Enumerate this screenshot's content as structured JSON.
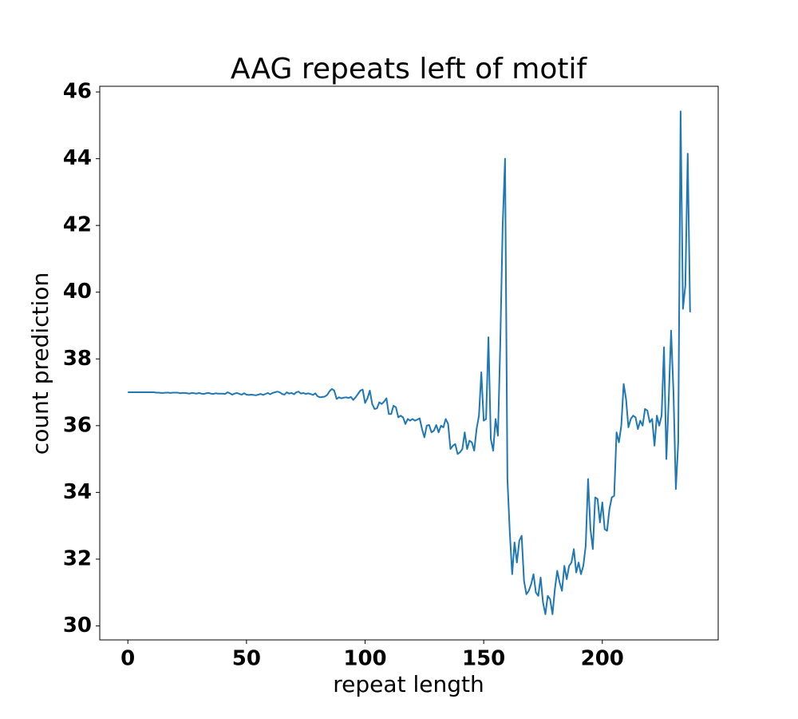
{
  "chart_data": {
    "type": "line",
    "title": "AAG repeats left of motif",
    "xlabel": "repeat length",
    "ylabel": "count prediction",
    "xlim": [
      -11.85,
      248.85
    ],
    "ylim": [
      29.58,
      46.17
    ],
    "xticks": [
      0,
      50,
      100,
      150,
      200
    ],
    "yticks": [
      30,
      32,
      34,
      36,
      38,
      40,
      42,
      44,
      46
    ],
    "x": [
      0,
      1,
      2,
      3,
      4,
      5,
      6,
      7,
      8,
      9,
      10,
      11,
      12,
      13,
      14,
      15,
      16,
      17,
      18,
      19,
      20,
      21,
      22,
      23,
      24,
      25,
      26,
      27,
      28,
      29,
      30,
      31,
      32,
      33,
      34,
      35,
      36,
      37,
      38,
      39,
      40,
      41,
      42,
      43,
      44,
      45,
      46,
      47,
      48,
      49,
      50,
      51,
      52,
      53,
      54,
      55,
      56,
      57,
      58,
      59,
      60,
      61,
      62,
      63,
      64,
      65,
      66,
      67,
      68,
      69,
      70,
      71,
      72,
      73,
      74,
      75,
      76,
      77,
      78,
      79,
      80,
      81,
      82,
      83,
      84,
      85,
      86,
      87,
      88,
      89,
      90,
      91,
      92,
      93,
      94,
      95,
      96,
      97,
      98,
      99,
      100,
      101,
      102,
      103,
      104,
      105,
      106,
      107,
      108,
      109,
      110,
      111,
      112,
      113,
      114,
      115,
      116,
      117,
      118,
      119,
      120,
      121,
      122,
      123,
      124,
      125,
      126,
      127,
      128,
      129,
      130,
      131,
      132,
      133,
      134,
      135,
      136,
      137,
      138,
      139,
      140,
      141,
      142,
      143,
      144,
      145,
      146,
      147,
      148,
      149,
      150,
      151,
      152,
      153,
      154,
      155,
      156,
      157,
      158,
      159,
      160,
      161,
      162,
      163,
      164,
      165,
      166,
      167,
      168,
      169,
      170,
      171,
      172,
      173,
      174,
      175,
      176,
      177,
      178,
      179,
      180,
      181,
      182,
      183,
      184,
      185,
      186,
      187,
      188,
      189,
      190,
      191,
      192,
      193,
      194,
      195,
      196,
      197,
      198,
      199,
      200,
      201,
      202,
      203,
      204,
      205,
      206,
      207,
      208,
      209,
      210,
      211,
      212,
      213,
      214,
      215,
      216,
      217,
      218,
      219,
      220,
      221,
      222,
      223,
      224,
      225,
      226,
      227,
      228,
      229,
      230,
      231,
      232,
      233,
      234,
      235,
      236,
      237
    ],
    "series": [
      {
        "color": "#1f77b4",
        "values": [
          37.0,
          37.0,
          37.0,
          37.0,
          37.0,
          37.0,
          37.0,
          37.0,
          37.0,
          37.0,
          37.0,
          37.0,
          36.99,
          36.99,
          36.98,
          36.98,
          36.99,
          36.99,
          36.98,
          36.99,
          36.99,
          36.99,
          36.97,
          36.98,
          36.98,
          36.97,
          36.96,
          36.98,
          36.97,
          36.96,
          36.98,
          36.96,
          36.95,
          36.97,
          36.98,
          36.96,
          36.95,
          36.97,
          36.96,
          36.96,
          36.96,
          36.95,
          37.0,
          36.97,
          36.93,
          36.96,
          36.98,
          36.95,
          36.93,
          36.97,
          36.93,
          36.92,
          36.93,
          36.92,
          36.91,
          36.93,
          36.95,
          36.92,
          36.95,
          36.98,
          36.94,
          36.98,
          37.0,
          37.02,
          37.0,
          36.95,
          36.93,
          37.0,
          36.96,
          36.98,
          36.94,
          37.0,
          37.02,
          36.96,
          36.98,
          36.95,
          36.97,
          36.95,
          36.92,
          36.97,
          36.88,
          36.85,
          36.86,
          36.87,
          36.92,
          37.03,
          37.1,
          37.05,
          36.8,
          36.85,
          36.82,
          36.84,
          36.85,
          36.83,
          36.86,
          36.77,
          36.85,
          36.95,
          37.05,
          37.08,
          36.68,
          36.82,
          37.05,
          36.65,
          36.5,
          36.52,
          36.7,
          36.65,
          36.72,
          36.82,
          36.35,
          36.35,
          36.6,
          36.55,
          36.25,
          36.3,
          36.25,
          36.05,
          36.2,
          36.15,
          36.2,
          36.15,
          36.18,
          36.22,
          35.9,
          35.65,
          36.0,
          36.02,
          35.8,
          35.85,
          36.02,
          35.8,
          36.0,
          35.95,
          36.2,
          36.05,
          35.3,
          35.4,
          35.45,
          35.15,
          35.2,
          35.3,
          35.8,
          35.3,
          35.55,
          35.5,
          35.25,
          35.9,
          36.3,
          37.6,
          36.15,
          36.2,
          38.65,
          35.6,
          35.25,
          36.2,
          35.7,
          38.5,
          42.0,
          44.0,
          34.4,
          32.8,
          31.55,
          32.5,
          31.9,
          32.55,
          32.7,
          31.35,
          30.95,
          31.05,
          31.25,
          31.55,
          31.0,
          30.9,
          31.45,
          30.7,
          30.35,
          30.9,
          30.8,
          30.35,
          31.1,
          31.65,
          31.3,
          31.05,
          31.8,
          31.4,
          31.8,
          31.9,
          32.3,
          31.6,
          31.9,
          31.55,
          31.8,
          32.4,
          34.4,
          32.9,
          32.3,
          33.85,
          33.8,
          33.1,
          33.7,
          32.9,
          32.85,
          33.5,
          33.85,
          33.9,
          35.8,
          35.5,
          36.0,
          37.25,
          36.8,
          35.95,
          36.2,
          36.3,
          36.25,
          35.9,
          36.15,
          36.0,
          36.5,
          36.45,
          36.1,
          36.2,
          35.4,
          36.3,
          36.0,
          36.3,
          38.35,
          35.0,
          36.8,
          38.85,
          37.0,
          34.1,
          35.5,
          45.42,
          39.5,
          40.2,
          44.15,
          39.4
        ]
      }
    ]
  }
}
